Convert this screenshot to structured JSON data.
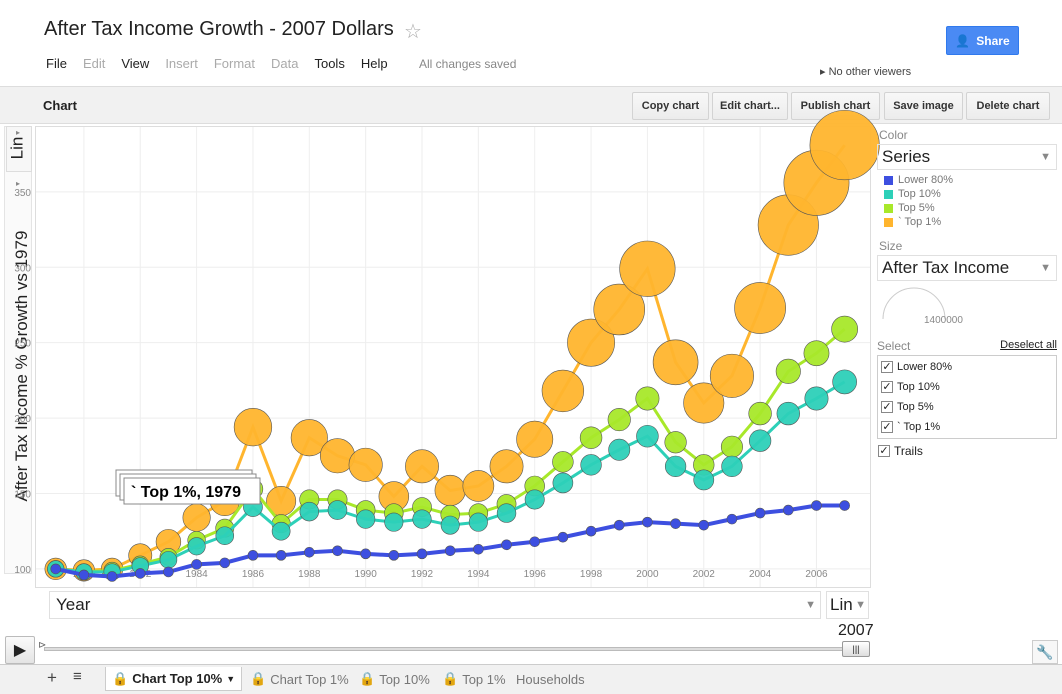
{
  "title": "After Tax Income Growth - 2007 Dollars",
  "menu": [
    "File",
    "Edit",
    "View",
    "Insert",
    "Format",
    "Data",
    "Tools",
    "Help"
  ],
  "save_status": "All changes saved",
  "share_label": "Share",
  "viewers": "No other viewers",
  "toolbar": {
    "title": "Chart",
    "buttons": [
      "Copy chart",
      "Edit chart...",
      "Publish chart",
      "Save image",
      "Delete chart"
    ]
  },
  "axis": {
    "y_label": "After Tax Income % Growth vs 1979",
    "y_scale": "Lin",
    "x_dropdown": "Year",
    "x_scale": "Lin"
  },
  "panel": {
    "color_label": "Color",
    "color_value": "Series",
    "size_label": "Size",
    "size_value": "After Tax Income",
    "size_max": "1400000",
    "select_label": "Select",
    "deselect_all": "Deselect all",
    "trails": "Trails"
  },
  "timeline": {
    "year": "2007"
  },
  "tooltip": "` Top 1%, 1979",
  "tabs": [
    "Chart Top 10%",
    "Chart Top 1%",
    "Top 10%",
    "Top 1%",
    "Households"
  ],
  "chart_data": {
    "type": "scatter",
    "xlim": [
      1978.3,
      2007.9
    ],
    "ylim": [
      88,
      393
    ],
    "yticks": [
      100,
      150,
      200,
      250,
      300,
      350
    ],
    "xticks": [
      1980,
      1982,
      1984,
      1986,
      1988,
      1990,
      1992,
      1994,
      1996,
      1998,
      2000,
      2002,
      2004,
      2006
    ],
    "x": [
      1979,
      1980,
      1981,
      1982,
      1983,
      1984,
      1985,
      1986,
      1987,
      1988,
      1989,
      1990,
      1991,
      1992,
      1993,
      1994,
      1995,
      1996,
      1997,
      1998,
      1999,
      2000,
      2001,
      2002,
      2003,
      2004,
      2005,
      2006,
      2007
    ],
    "series": [
      {
        "name": "Lower 80%",
        "color": "#3d4fe0",
        "values": [
          100,
          96,
          95,
          97,
          98,
          103,
          104,
          109,
          109,
          111,
          112,
          110,
          109,
          110,
          112,
          113,
          116,
          118,
          121,
          125,
          129,
          131,
          130,
          129,
          133,
          137,
          139,
          142,
          142
        ]
      },
      {
        "name": "Top 10%",
        "color": "#2dd0b8",
        "values": [
          100,
          98,
          98,
          102,
          106,
          115,
          122,
          141,
          125,
          138,
          139,
          133,
          131,
          133,
          129,
          131,
          137,
          146,
          157,
          169,
          179,
          188,
          168,
          159,
          168,
          185,
          203,
          213,
          224
        ]
      },
      {
        "name": "Top 5%",
        "color": "#a8e82a",
        "values": [
          100,
          98,
          99,
          103,
          108,
          119,
          127,
          153,
          130,
          146,
          146,
          139,
          137,
          141,
          136,
          137,
          143,
          155,
          171,
          187,
          199,
          213,
          184,
          169,
          181,
          203,
          231,
          243,
          259
        ]
      },
      {
        "name": "` Top 1%",
        "color": "#ffb52e",
        "values": [
          100,
          99,
          100,
          109,
          118,
          134,
          145,
          194,
          145,
          187,
          175,
          169,
          148,
          168,
          152,
          155,
          168,
          186,
          218,
          250,
          272,
          299,
          237,
          210,
          228,
          273,
          328,
          356,
          381
        ]
      }
    ]
  }
}
